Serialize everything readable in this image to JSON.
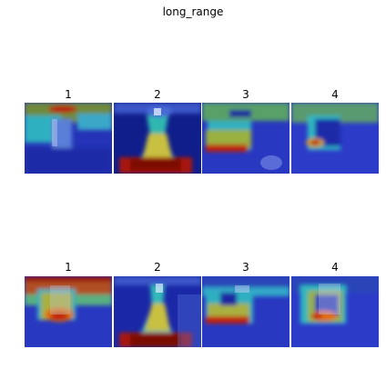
{
  "figure": {
    "title": "long_range",
    "rows": [
      {
        "panels": [
          {
            "label": "1"
          },
          {
            "label": "2"
          },
          {
            "label": "3"
          },
          {
            "label": "4"
          }
        ]
      },
      {
        "panels": [
          {
            "label": "1"
          },
          {
            "label": "2"
          },
          {
            "label": "3"
          },
          {
            "label": "4"
          }
        ]
      }
    ],
    "colormap": "jet"
  }
}
